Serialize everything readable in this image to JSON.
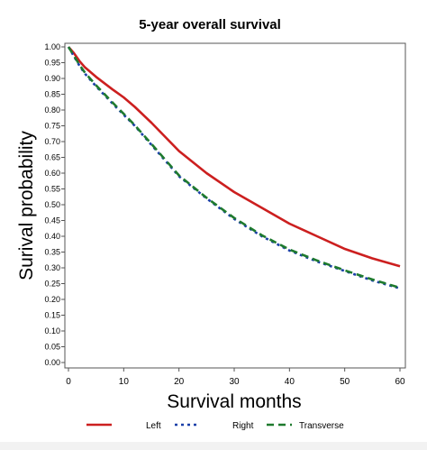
{
  "chart_data": {
    "type": "line",
    "title": "5-year overall survival",
    "xlabel": "Survival months",
    "ylabel": "Surival probability",
    "xlim": [
      0,
      60
    ],
    "ylim": [
      0,
      1
    ],
    "x_ticks": [
      "0",
      "10",
      "20",
      "30",
      "40",
      "50",
      "60"
    ],
    "y_ticks": [
      "0.00",
      "0.05",
      "0.10",
      "0.15",
      "0.20",
      "0.25",
      "0.30",
      "0.35",
      "0.40",
      "0.45",
      "0.50",
      "0.55",
      "0.60",
      "0.65",
      "0.70",
      "0.75",
      "0.80",
      "0.85",
      "0.90",
      "0.95",
      "1.00"
    ],
    "grid": false,
    "legend_position": "bottom",
    "series": [
      {
        "name": "Left",
        "color": "#cc1f1f",
        "dash": "solid",
        "x": [
          0,
          1,
          2,
          3,
          5,
          8,
          10,
          12,
          15,
          20,
          25,
          30,
          35,
          40,
          45,
          50,
          55,
          60
        ],
        "y": [
          1.0,
          0.98,
          0.955,
          0.935,
          0.905,
          0.865,
          0.84,
          0.81,
          0.76,
          0.67,
          0.6,
          0.54,
          0.49,
          0.44,
          0.4,
          0.36,
          0.33,
          0.305
        ]
      },
      {
        "name": "Right",
        "color": "#1a3fa8",
        "dash": "dotted",
        "x": [
          0,
          1,
          2,
          3,
          5,
          8,
          10,
          12,
          15,
          20,
          25,
          30,
          35,
          40,
          45,
          50,
          55,
          60
        ],
        "y": [
          1.0,
          0.97,
          0.94,
          0.915,
          0.875,
          0.82,
          0.785,
          0.75,
          0.69,
          0.59,
          0.52,
          0.455,
          0.4,
          0.355,
          0.32,
          0.29,
          0.26,
          0.235
        ]
      },
      {
        "name": "Transverse",
        "color": "#1e7a2e",
        "dash": "dashed",
        "x": [
          0,
          1,
          2,
          3,
          5,
          8,
          10,
          12,
          15,
          20,
          25,
          30,
          35,
          40,
          45,
          50,
          55,
          60
        ],
        "y": [
          1.0,
          0.972,
          0.943,
          0.918,
          0.878,
          0.823,
          0.788,
          0.752,
          0.693,
          0.593,
          0.522,
          0.458,
          0.403,
          0.358,
          0.323,
          0.292,
          0.263,
          0.237
        ]
      }
    ]
  }
}
